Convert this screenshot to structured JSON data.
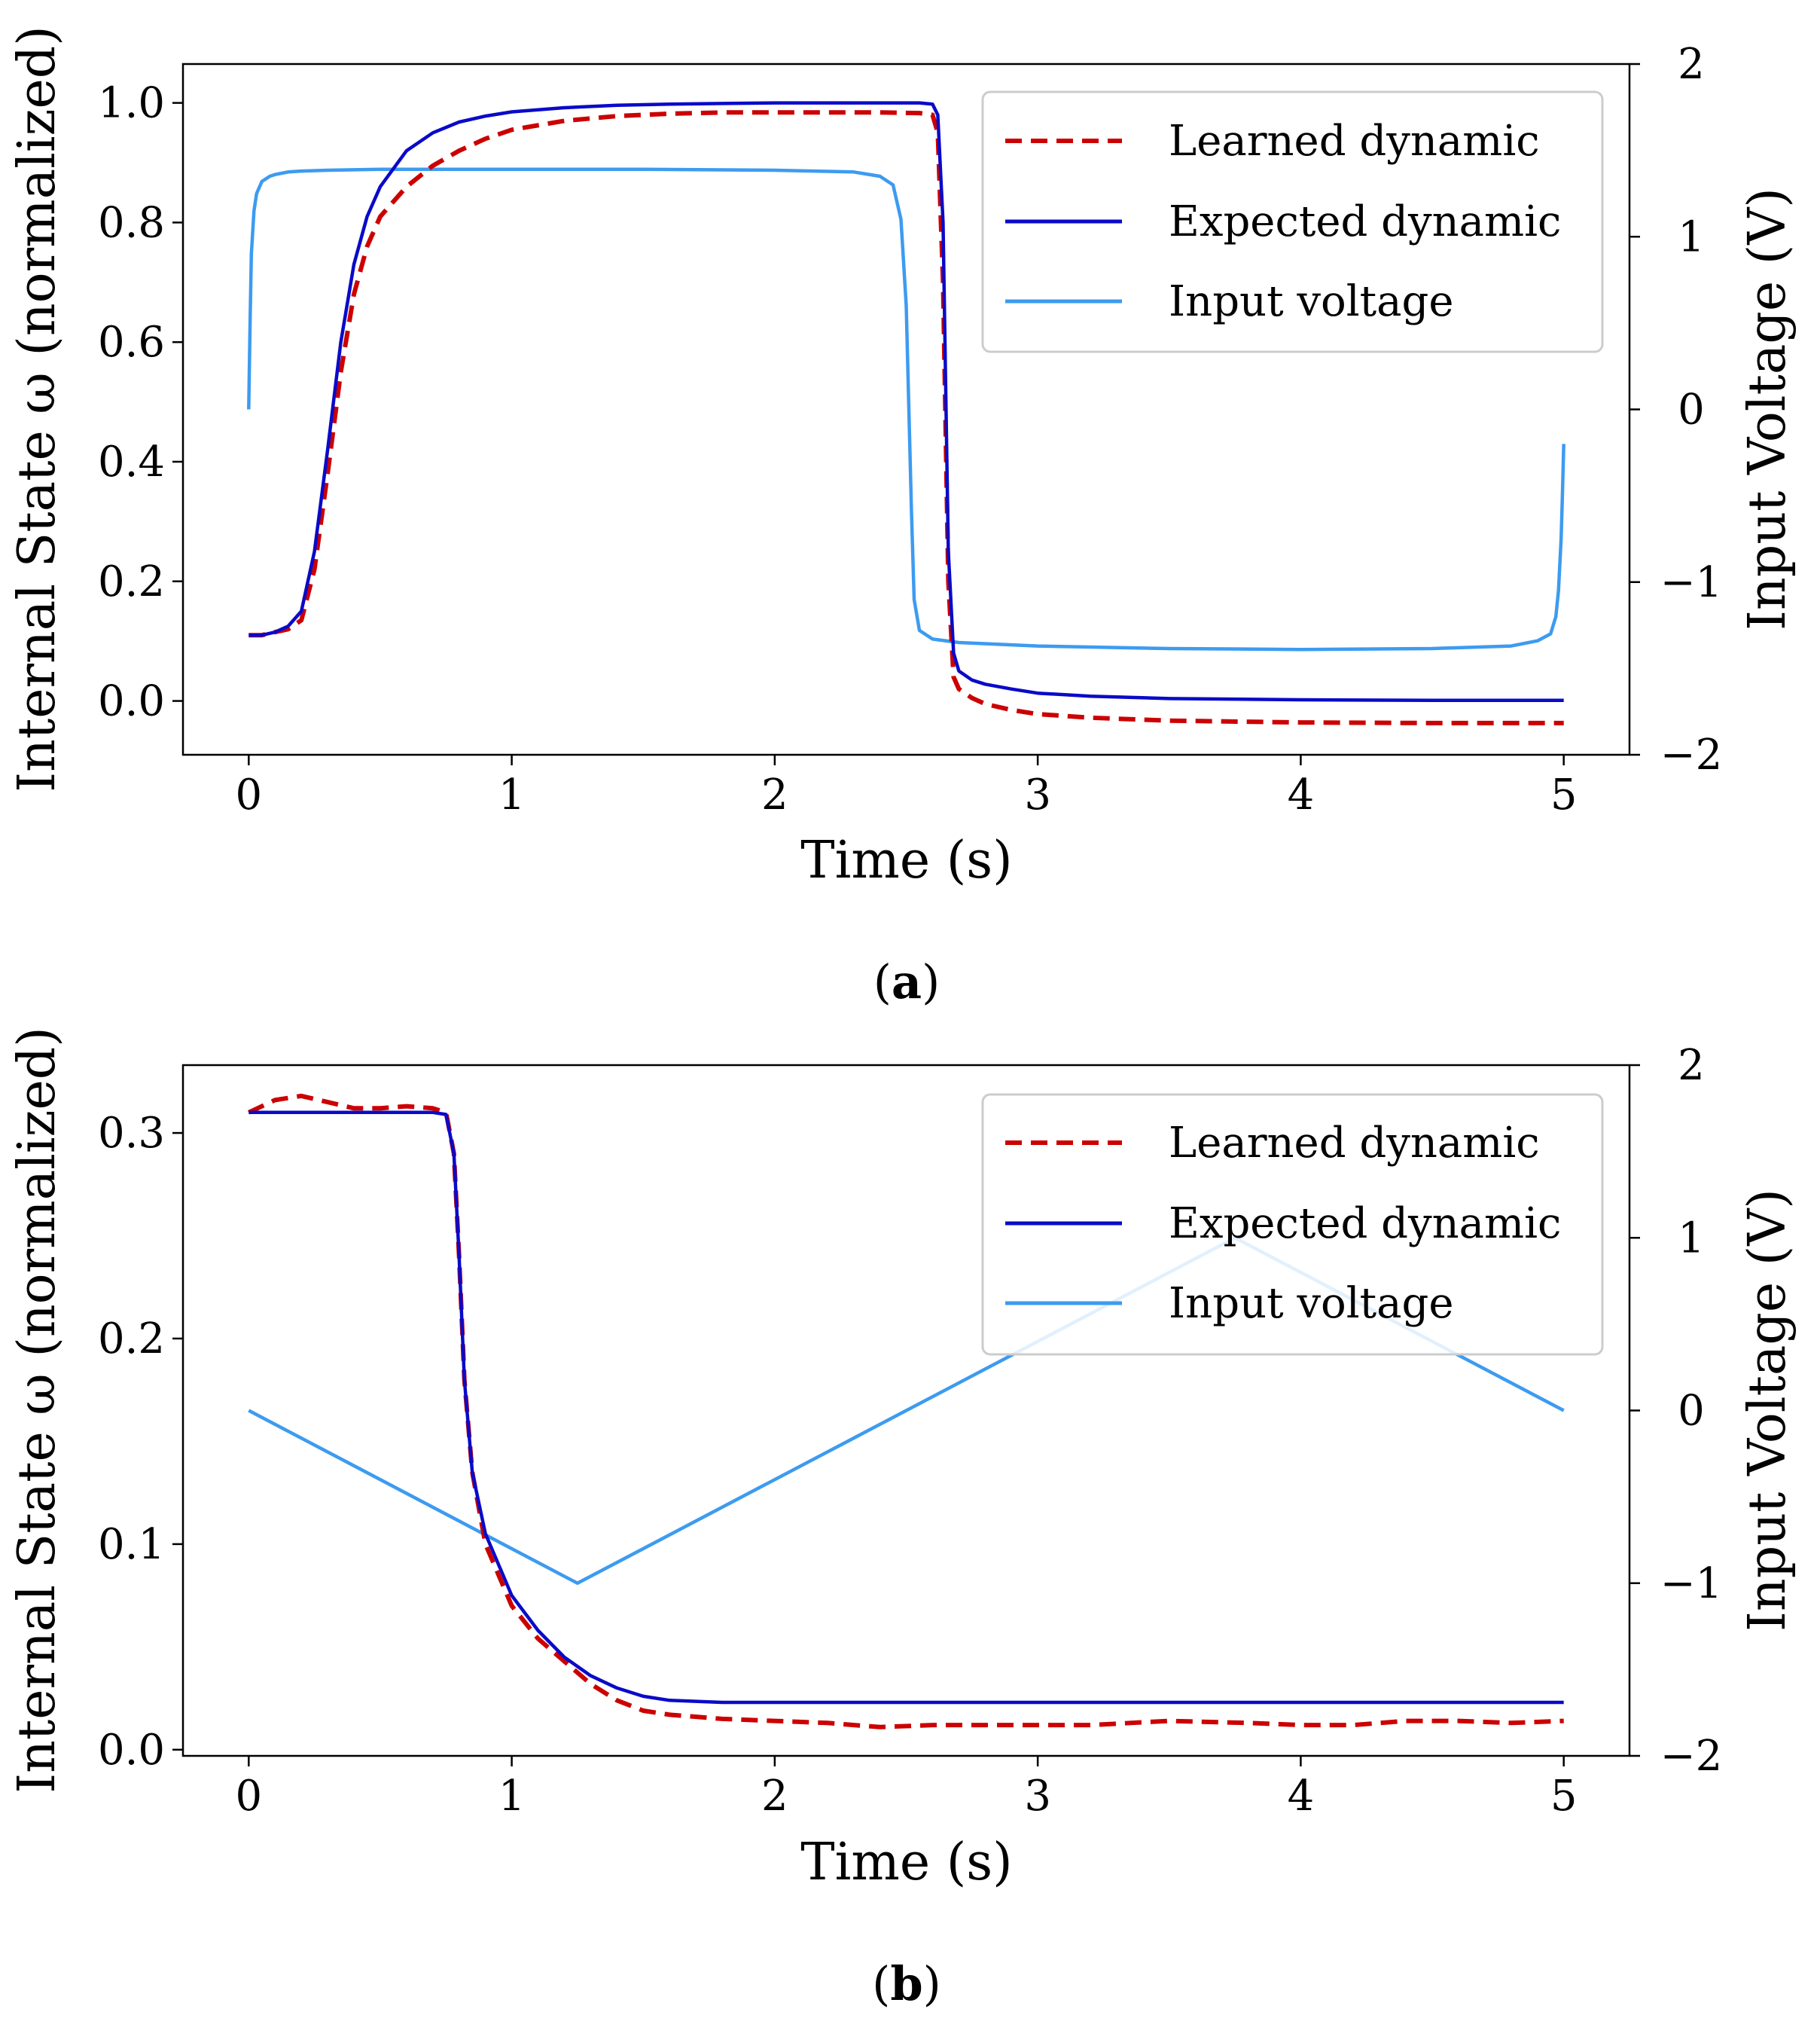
{
  "colors": {
    "learned": "#cc0000",
    "expected": "#0a0ac8",
    "input": "#3d9bf0",
    "axis": "#000000",
    "legend_border": "#cccccc"
  },
  "chart_data": [
    {
      "type": "line",
      "caption_letter": "a",
      "caption_open": "(",
      "caption_close": ")",
      "xlabel": "Time (s)",
      "ylabel": "Internal State ω (normalized)",
      "y2label": "Input Voltage (V)",
      "xlim": [
        -0.25,
        5.25
      ],
      "ylim": [
        -0.09,
        1.065
      ],
      "y2lim": [
        -2,
        2
      ],
      "xticks": [
        0,
        1,
        2,
        3,
        4,
        5
      ],
      "xtick_labels": [
        "0",
        "1",
        "2",
        "3",
        "4",
        "5"
      ],
      "yticks": [
        0.0,
        0.2,
        0.4,
        0.6,
        0.8,
        1.0
      ],
      "ytick_labels": [
        "0.0",
        "0.2",
        "0.4",
        "0.6",
        "0.8",
        "1.0"
      ],
      "y2ticks": [
        -2,
        -1,
        0,
        1,
        2
      ],
      "y2tick_labels": [
        "−2",
        "−1",
        "0",
        "1",
        "2"
      ],
      "legend_position": "top-right",
      "series": [
        {
          "name": "Learned dynamic",
          "axis": "left",
          "style": "dashed",
          "color_key": "learned",
          "x": [
            0,
            0.05,
            0.1,
            0.15,
            0.2,
            0.25,
            0.3,
            0.35,
            0.4,
            0.45,
            0.5,
            0.6,
            0.7,
            0.8,
            0.9,
            1.0,
            1.2,
            1.4,
            1.6,
            1.8,
            2.0,
            2.2,
            2.4,
            2.55,
            2.6,
            2.62,
            2.64,
            2.66,
            2.68,
            2.7,
            2.75,
            2.8,
            2.9,
            3.0,
            3.2,
            3.5,
            4.0,
            4.5,
            5.0
          ],
          "y": [
            0.11,
            0.11,
            0.115,
            0.12,
            0.135,
            0.22,
            0.38,
            0.55,
            0.68,
            0.76,
            0.81,
            0.86,
            0.895,
            0.92,
            0.94,
            0.955,
            0.97,
            0.978,
            0.982,
            0.984,
            0.984,
            0.984,
            0.984,
            0.983,
            0.98,
            0.95,
            0.7,
            0.2,
            0.04,
            0.02,
            0.005,
            -0.005,
            -0.015,
            -0.022,
            -0.028,
            -0.033,
            -0.036,
            -0.037,
            -0.037
          ]
        },
        {
          "name": "Expected dynamic",
          "axis": "left",
          "style": "solid",
          "color_key": "expected",
          "x": [
            0,
            0.05,
            0.1,
            0.15,
            0.2,
            0.25,
            0.3,
            0.35,
            0.4,
            0.45,
            0.5,
            0.6,
            0.7,
            0.8,
            0.9,
            1.0,
            1.2,
            1.4,
            1.6,
            1.8,
            2.0,
            2.2,
            2.4,
            2.55,
            2.6,
            2.62,
            2.64,
            2.66,
            2.68,
            2.7,
            2.75,
            2.8,
            2.9,
            3.0,
            3.2,
            3.5,
            4.0,
            4.5,
            5.0
          ],
          "y": [
            0.11,
            0.11,
            0.115,
            0.125,
            0.15,
            0.25,
            0.42,
            0.6,
            0.73,
            0.81,
            0.86,
            0.92,
            0.95,
            0.968,
            0.978,
            0.985,
            0.992,
            0.996,
            0.998,
            0.999,
            1.0,
            1.0,
            1.0,
            1.0,
            0.998,
            0.98,
            0.8,
            0.25,
            0.08,
            0.05,
            0.035,
            0.028,
            0.02,
            0.013,
            0.008,
            0.004,
            0.002,
            0.001,
            0.001
          ]
        },
        {
          "name": "Input voltage",
          "axis": "right",
          "style": "solid",
          "color_key": "input",
          "x": [
            0,
            0.005,
            0.01,
            0.02,
            0.03,
            0.05,
            0.08,
            0.1,
            0.15,
            0.2,
            0.3,
            0.5,
            1.0,
            1.5,
            2.0,
            2.3,
            2.4,
            2.45,
            2.48,
            2.5,
            2.51,
            2.52,
            2.53,
            2.55,
            2.6,
            2.7,
            3.0,
            3.5,
            4.0,
            4.5,
            4.8,
            4.9,
            4.95,
            4.97,
            4.98,
            4.99,
            4.995,
            5.0
          ],
          "y": [
            0,
            0.5,
            0.9,
            1.15,
            1.25,
            1.32,
            1.35,
            1.36,
            1.375,
            1.38,
            1.385,
            1.39,
            1.39,
            1.39,
            1.385,
            1.375,
            1.35,
            1.3,
            1.1,
            0.6,
            0.0,
            -0.6,
            -1.1,
            -1.28,
            -1.33,
            -1.35,
            -1.37,
            -1.385,
            -1.39,
            -1.385,
            -1.37,
            -1.34,
            -1.3,
            -1.2,
            -1.05,
            -0.75,
            -0.5,
            -0.2
          ]
        }
      ]
    },
    {
      "type": "line",
      "caption_letter": "b",
      "caption_open": "(",
      "caption_close": ")",
      "xlabel": "Time (s)",
      "ylabel": "Internal State ω (normalized)",
      "y2label": "Input Voltage (V)",
      "xlim": [
        -0.25,
        5.25
      ],
      "ylim": [
        -0.003,
        0.333
      ],
      "y2lim": [
        -2,
        2
      ],
      "xticks": [
        0,
        1,
        2,
        3,
        4,
        5
      ],
      "xtick_labels": [
        "0",
        "1",
        "2",
        "3",
        "4",
        "5"
      ],
      "yticks": [
        0.0,
        0.1,
        0.2,
        0.3
      ],
      "ytick_labels": [
        "0.0",
        "0.1",
        "0.2",
        "0.3"
      ],
      "y2ticks": [
        -2,
        -1,
        0,
        1,
        2
      ],
      "y2tick_labels": [
        "−2",
        "−1",
        "0",
        "1",
        "2"
      ],
      "legend_position": "top-right",
      "series": [
        {
          "name": "Learned dynamic",
          "axis": "left",
          "style": "dashed",
          "color_key": "learned",
          "x": [
            0,
            0.1,
            0.2,
            0.3,
            0.4,
            0.5,
            0.6,
            0.7,
            0.75,
            0.78,
            0.8,
            0.82,
            0.85,
            0.9,
            1.0,
            1.1,
            1.2,
            1.3,
            1.4,
            1.5,
            1.6,
            1.8,
            2.0,
            2.2,
            2.4,
            2.6,
            3.0,
            3.2,
            3.5,
            3.8,
            4.0,
            4.2,
            4.4,
            4.6,
            4.8,
            5.0
          ],
          "y": [
            0.31,
            0.316,
            0.318,
            0.315,
            0.312,
            0.312,
            0.313,
            0.312,
            0.31,
            0.29,
            0.24,
            0.18,
            0.135,
            0.1,
            0.07,
            0.054,
            0.043,
            0.032,
            0.024,
            0.019,
            0.017,
            0.015,
            0.014,
            0.013,
            0.011,
            0.012,
            0.012,
            0.012,
            0.014,
            0.013,
            0.012,
            0.012,
            0.014,
            0.014,
            0.013,
            0.014
          ]
        },
        {
          "name": "Expected dynamic",
          "axis": "left",
          "style": "solid",
          "color_key": "expected",
          "x": [
            0,
            0.5,
            0.7,
            0.75,
            0.78,
            0.8,
            0.82,
            0.85,
            0.9,
            1.0,
            1.1,
            1.2,
            1.3,
            1.4,
            1.5,
            1.6,
            1.8,
            2.0,
            3.0,
            4.0,
            5.0
          ],
          "y": [
            0.31,
            0.31,
            0.31,
            0.309,
            0.29,
            0.24,
            0.18,
            0.135,
            0.105,
            0.075,
            0.058,
            0.045,
            0.036,
            0.03,
            0.026,
            0.024,
            0.023,
            0.023,
            0.023,
            0.023,
            0.023
          ]
        },
        {
          "name": "Input voltage",
          "axis": "right",
          "style": "solid",
          "color_key": "input",
          "x": [
            0,
            1.25,
            3.75,
            5
          ],
          "y": [
            0,
            -1,
            1,
            0
          ]
        }
      ]
    }
  ]
}
